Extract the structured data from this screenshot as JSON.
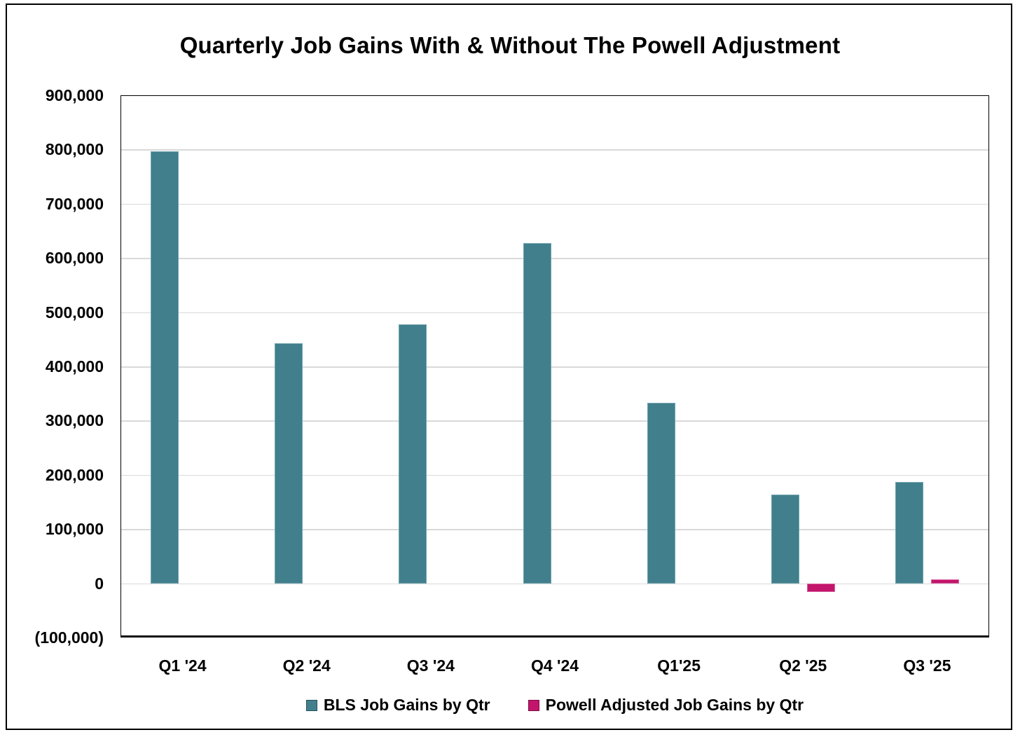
{
  "title": "Quarterly Job Gains With & Without The Powell Adjustment",
  "chart_data": {
    "type": "bar",
    "title": "Quarterly Job Gains With & Without The Powell Adjustment",
    "categories": [
      "Q1 '24",
      "Q2 '24",
      "Q3 '24",
      "Q4 '24",
      "Q1'25",
      "Q2 '25",
      "Q3 '25"
    ],
    "series": [
      {
        "name": "BLS Job Gains by Qtr",
        "color": "#417F8D",
        "border_color": "#6FA3AE",
        "values": [
          797000,
          442000,
          477000,
          627000,
          333000,
          164000,
          187000
        ]
      },
      {
        "name": "Powell Adjusted Job Gains by Qtr",
        "color": "#C2156B",
        "border_color": "#DA639F",
        "values": [
          null,
          null,
          null,
          null,
          null,
          -16000,
          7000
        ]
      }
    ],
    "xlabel": "",
    "ylabel": "",
    "ylim": [
      -100000,
      900000
    ],
    "ytick_step": 100000,
    "ytick_labels": [
      "900,000",
      "800,000",
      "700,000",
      "600,000",
      "500,000",
      "400,000",
      "300,000",
      "200,000",
      "100,000",
      "0",
      "(100,000)"
    ],
    "grid": true,
    "gridline_color": "#D9D9D9",
    "axis_color": "#000000",
    "legend_position": "bottom"
  }
}
